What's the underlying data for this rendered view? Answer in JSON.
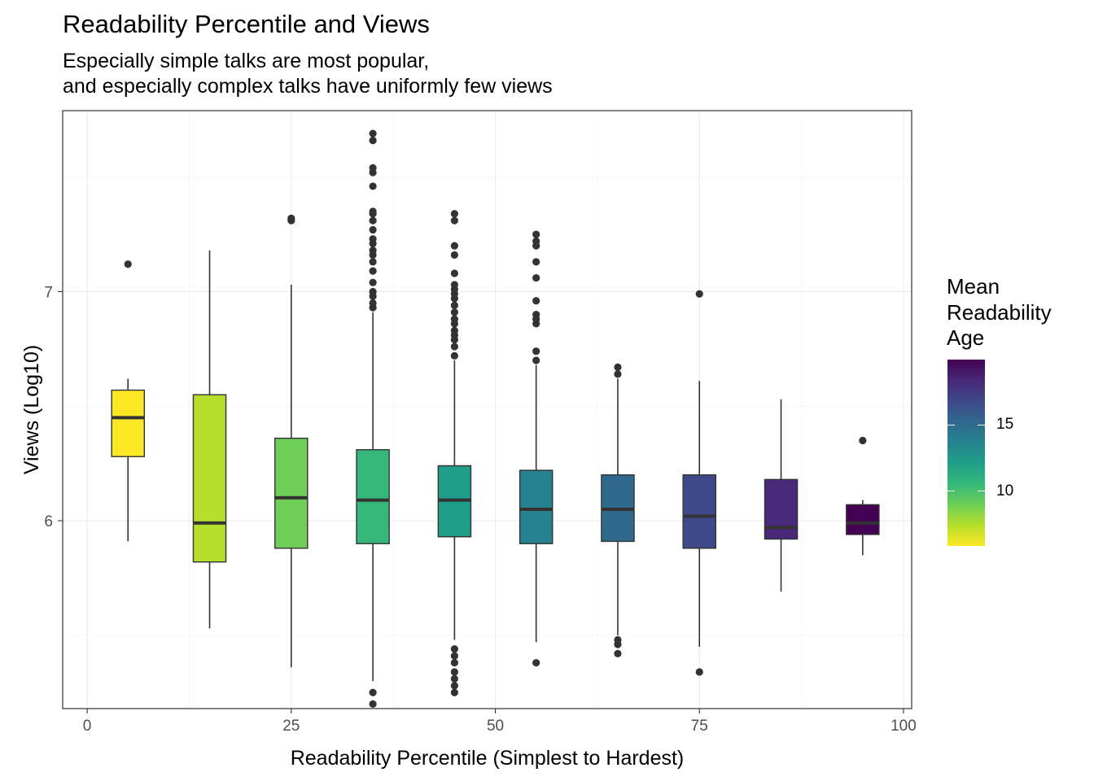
{
  "title": "Readability Percentile and Views",
  "subtitle_lines": [
    "Especially simple talks are most popular,",
    "and especially complex talks have uniformly few views"
  ],
  "legend": {
    "title_lines": [
      "Mean",
      "Readability",
      "Age"
    ],
    "ticks": [
      {
        "value": 10,
        "label": "10"
      },
      {
        "value": 15,
        "label": "15"
      }
    ],
    "range": [
      5.9,
      19.9
    ],
    "colors": [
      "#fde725",
      "#b5de2b",
      "#6ece58",
      "#35b779",
      "#1f9e89",
      "#26828e",
      "#31688e",
      "#3e4989",
      "#482878",
      "#440154"
    ]
  },
  "chart_data": {
    "type": "box",
    "xlabel": "Readability Percentile (Simplest to Hardest)",
    "ylabel": "Views (Log10)",
    "xlim": [
      -3,
      101
    ],
    "ylim": [
      5.18,
      7.79
    ],
    "x_ticks": [
      0,
      25,
      50,
      75,
      100
    ],
    "y_ticks": [
      6,
      7
    ],
    "grid": true,
    "box_width": 4,
    "boxes": [
      {
        "x": 5,
        "fill": "#fde725",
        "whisker_low": 5.91,
        "q1": 6.28,
        "median": 6.45,
        "q3": 6.57,
        "whisker_high": 6.62,
        "outliers": [
          7.12
        ]
      },
      {
        "x": 15,
        "fill": "#b5de2b",
        "whisker_low": 5.53,
        "q1": 5.82,
        "median": 5.99,
        "q3": 6.55,
        "whisker_high": 7.18,
        "outliers": []
      },
      {
        "x": 25,
        "fill": "#6ece58",
        "whisker_low": 5.36,
        "q1": 5.88,
        "median": 6.1,
        "q3": 6.36,
        "whisker_high": 7.03,
        "outliers": [
          7.31,
          7.32
        ]
      },
      {
        "x": 35,
        "fill": "#35b779",
        "whisker_low": 5.3,
        "q1": 5.9,
        "median": 6.09,
        "q3": 6.31,
        "whisker_high": 6.91,
        "outliers": [
          6.93,
          6.95,
          6.98,
          7.0,
          7.04,
          7.09,
          7.13,
          7.16,
          7.18,
          7.21,
          7.23,
          7.27,
          7.31,
          7.34,
          7.35,
          7.46,
          7.52,
          7.54,
          7.66,
          7.69,
          5.25,
          5.2
        ]
      },
      {
        "x": 45,
        "fill": "#1f9e89",
        "whisker_low": 5.48,
        "q1": 5.93,
        "median": 6.09,
        "q3": 6.24,
        "whisker_high": 6.7,
        "outliers": [
          6.72,
          6.76,
          6.79,
          6.81,
          6.83,
          6.86,
          6.88,
          6.91,
          6.94,
          6.97,
          6.99,
          7.01,
          7.03,
          7.08,
          7.16,
          7.2,
          7.31,
          7.34,
          5.44,
          5.41,
          5.38,
          5.34,
          5.31,
          5.28,
          5.25
        ]
      },
      {
        "x": 55,
        "fill": "#26828e",
        "whisker_low": 5.47,
        "q1": 5.9,
        "median": 6.05,
        "q3": 6.22,
        "whisker_high": 6.68,
        "outliers": [
          6.7,
          6.74,
          6.86,
          6.88,
          6.9,
          6.96,
          7.06,
          7.13,
          7.2,
          7.22,
          7.25,
          5.38
        ]
      },
      {
        "x": 65,
        "fill": "#31688e",
        "whisker_low": 5.5,
        "q1": 5.91,
        "median": 6.05,
        "q3": 6.2,
        "whisker_high": 6.62,
        "outliers": [
          6.64,
          6.67,
          5.48,
          5.46,
          5.42
        ]
      },
      {
        "x": 75,
        "fill": "#3e4989",
        "whisker_low": 5.45,
        "q1": 5.88,
        "median": 6.02,
        "q3": 6.2,
        "whisker_high": 6.61,
        "outliers": [
          6.99,
          5.34
        ]
      },
      {
        "x": 85,
        "fill": "#482878",
        "whisker_low": 5.69,
        "q1": 5.92,
        "median": 5.97,
        "q3": 6.18,
        "whisker_high": 6.53,
        "outliers": []
      },
      {
        "x": 95,
        "fill": "#440154",
        "whisker_low": 5.85,
        "q1": 5.94,
        "median": 5.99,
        "q3": 6.07,
        "whisker_high": 6.09,
        "outliers": [
          6.35
        ]
      }
    ]
  }
}
